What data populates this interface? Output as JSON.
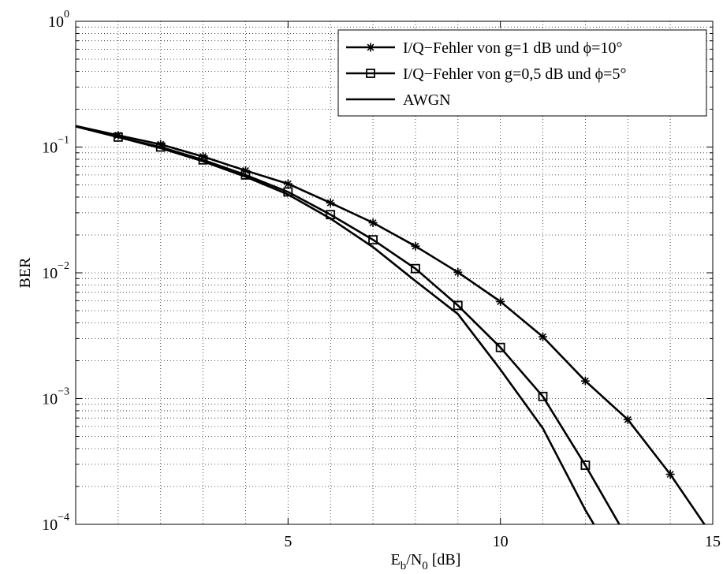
{
  "chart_data": {
    "type": "line",
    "xlabel": "E_b/N_0 [dB]",
    "xlabel_parts": {
      "e": "E",
      "b": "b",
      "slash": "/N",
      "zero": "0",
      "unit": " [dB]"
    },
    "ylabel": "BER",
    "xlim": [
      0,
      15
    ],
    "ylim": [
      0.0001,
      1
    ],
    "yscale": "log",
    "xticks": [
      5,
      10,
      15
    ],
    "xtick_labels": [
      "5",
      "10",
      "15"
    ],
    "yticks": [
      {
        "value": 1,
        "base": "10",
        "exp": "0"
      },
      {
        "value": 0.1,
        "base": "10",
        "exp": "−1"
      },
      {
        "value": 0.01,
        "base": "10",
        "exp": "−2"
      },
      {
        "value": 0.001,
        "base": "10",
        "exp": "−3"
      },
      {
        "value": 0.0001,
        "base": "10",
        "exp": "−4"
      }
    ],
    "grid": true,
    "legend_position": "top-right",
    "series": [
      {
        "name": "I/Q−Fehler von g=1 dB und ϕ=10°",
        "marker": "asterisk",
        "x": [
          0,
          1,
          2,
          3,
          4,
          5,
          6,
          7,
          8,
          9,
          10,
          11,
          12,
          13,
          14,
          15
        ],
        "y": [
          0.147,
          0.124,
          0.105,
          0.084,
          0.065,
          0.051,
          0.036,
          0.025,
          0.0163,
          0.0101,
          0.0059,
          0.0031,
          0.00138,
          0.00068,
          0.00025,
          8e-05
        ],
        "marker_x": [
          1,
          2,
          3,
          4,
          5,
          6,
          7,
          8,
          9,
          10,
          11,
          12,
          13,
          14
        ]
      },
      {
        "name": "I/Q−Fehler von g=0,5 dB und ϕ=5°",
        "marker": "square",
        "x": [
          0,
          1,
          2,
          3,
          4,
          5,
          6,
          7,
          8,
          9,
          10,
          11,
          12,
          12.8
        ],
        "y": [
          0.146,
          0.12,
          0.1,
          0.079,
          0.06,
          0.044,
          0.029,
          0.0183,
          0.0108,
          0.0055,
          0.00255,
          0.00104,
          0.000295,
          0.0001
        ],
        "marker_x": [
          1,
          2,
          3,
          4,
          5,
          6,
          7,
          8,
          9,
          10,
          11,
          12
        ]
      },
      {
        "name": "AWGN",
        "marker": "none",
        "x": [
          0,
          1,
          2,
          3,
          4,
          5,
          6,
          7,
          8,
          9,
          10,
          11,
          12,
          12.2
        ],
        "y": [
          0.146,
          0.12,
          0.098,
          0.077,
          0.058,
          0.042,
          0.027,
          0.016,
          0.0086,
          0.0047,
          0.0017,
          0.00058,
          0.00013,
          0.0001
        ],
        "marker_x": []
      }
    ]
  }
}
